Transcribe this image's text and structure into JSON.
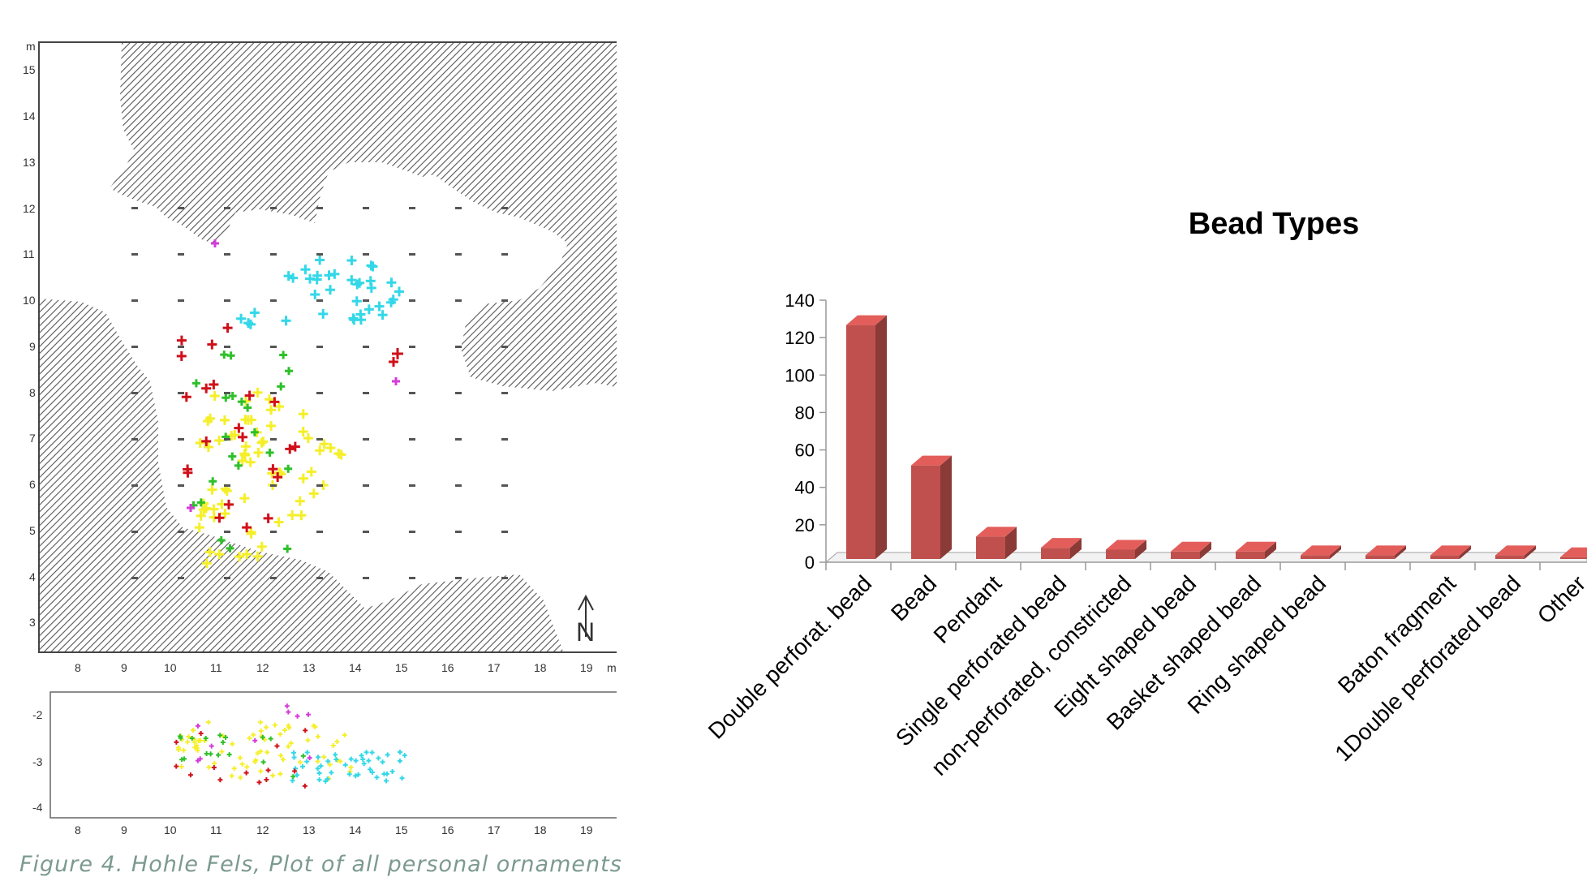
{
  "caption": "Figure 4. Hohle Fels, Plot of all personal ornaments",
  "plan": {
    "y_unit": "m",
    "x_unit": "m",
    "y_ticks": [
      "3",
      "4",
      "5",
      "6",
      "7",
      "8",
      "9",
      "10",
      "11",
      "12",
      "13",
      "14",
      "15"
    ],
    "x_ticks": [
      "8",
      "9",
      "10",
      "11",
      "12",
      "13",
      "14",
      "15",
      "16",
      "17",
      "18",
      "19"
    ],
    "profile_y_ticks": [
      "-2",
      "-3",
      "-4"
    ],
    "profile_x_ticks": [
      "8",
      "9",
      "10",
      "11",
      "12",
      "13",
      "14",
      "15",
      "16",
      "17",
      "18",
      "19"
    ],
    "north_label": "N",
    "colors": {
      "cyan": "#33d8e8",
      "yellow": "#f5ef2a",
      "red": "#d0101a",
      "green": "#2ec02a",
      "magenta": "#d43cd8",
      "hatch": "#555555"
    }
  },
  "chart_data": {
    "type": "bar",
    "title": "Bead Types",
    "ylim": [
      0,
      140
    ],
    "yticks": [
      0,
      20,
      40,
      60,
      80,
      100,
      120,
      140
    ],
    "bar_color": "#c0504d",
    "categories": [
      "Double perforat. bead",
      "Bead",
      "Pendant",
      "Single perforated bead",
      "non-perforated, constricted",
      "Eight shaped bead",
      "Basket shaped bead",
      "Ring shaped bead",
      "",
      "Baton fragment",
      "1Double perforated bead",
      "Other"
    ],
    "values": [
      125,
      50,
      12,
      6,
      5,
      4,
      4,
      2,
      2,
      2,
      2,
      1
    ]
  }
}
